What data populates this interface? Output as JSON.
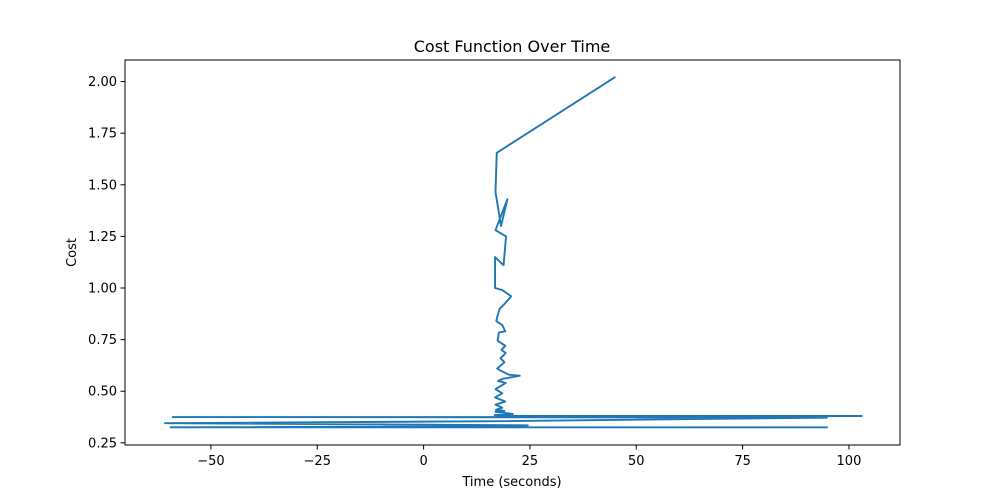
{
  "chart_data": {
    "type": "line",
    "title": "Cost Function Over Time",
    "xlabel": "Time (seconds)",
    "ylabel": "Cost",
    "xlim": [
      -70.2,
      112.0
    ],
    "ylim": [
      0.2395,
      2.1045
    ],
    "xticks": [
      -50,
      -25,
      0,
      25,
      50,
      75,
      100
    ],
    "xtick_labels": [
      "−50",
      "−25",
      "0",
      "25",
      "50",
      "75",
      "100"
    ],
    "yticks": [
      0.25,
      0.5,
      0.75,
      1.0,
      1.25,
      1.5,
      1.75,
      2.0
    ],
    "ytick_labels": [
      "0.25",
      "0.50",
      "0.75",
      "1.00",
      "1.25",
      "1.50",
      "1.75",
      "2.00"
    ],
    "grid": false,
    "legend": null,
    "series": [
      {
        "name": "Cost",
        "color": "#1f77b4",
        "x": [
          44.9,
          17.2,
          16.9,
          18.2,
          19.7,
          16.9,
          19.4,
          19.3,
          18.8,
          16.8,
          16.8,
          18.5,
          20.6,
          18.9,
          17.9,
          17.3,
          17.1,
          18.5,
          19.2,
          17.7,
          17.4,
          19.2,
          18.3,
          19.3,
          18.1,
          19.0,
          17.3,
          18.1,
          20.0,
          22.6,
          18.6,
          17.5,
          19.3,
          16.9,
          18.5,
          16.8,
          19.2,
          16.9,
          18.5,
          17.0,
          19.0,
          16.9,
          21.0,
          16.7,
          19.0,
          103.0,
          16.9,
          -59.0,
          94.8,
          17.1,
          -60.8,
          24.5,
          16.9,
          -59.5,
          94.8
        ],
        "y": [
          2.02,
          1.655,
          1.465,
          1.3,
          1.43,
          1.28,
          1.25,
          1.23,
          1.11,
          1.15,
          1.0,
          0.99,
          0.96,
          0.92,
          0.9,
          0.86,
          0.84,
          0.82,
          0.79,
          0.785,
          0.745,
          0.72,
          0.7,
          0.685,
          0.66,
          0.64,
          0.61,
          0.6,
          0.58,
          0.575,
          0.56,
          0.55,
          0.54,
          0.51,
          0.49,
          0.47,
          0.45,
          0.435,
          0.42,
          0.41,
          0.405,
          0.4,
          0.39,
          0.385,
          0.38,
          0.38,
          0.375,
          0.375,
          0.372,
          0.355,
          0.345,
          0.335,
          0.33,
          0.325,
          0.325
        ]
      }
    ]
  }
}
